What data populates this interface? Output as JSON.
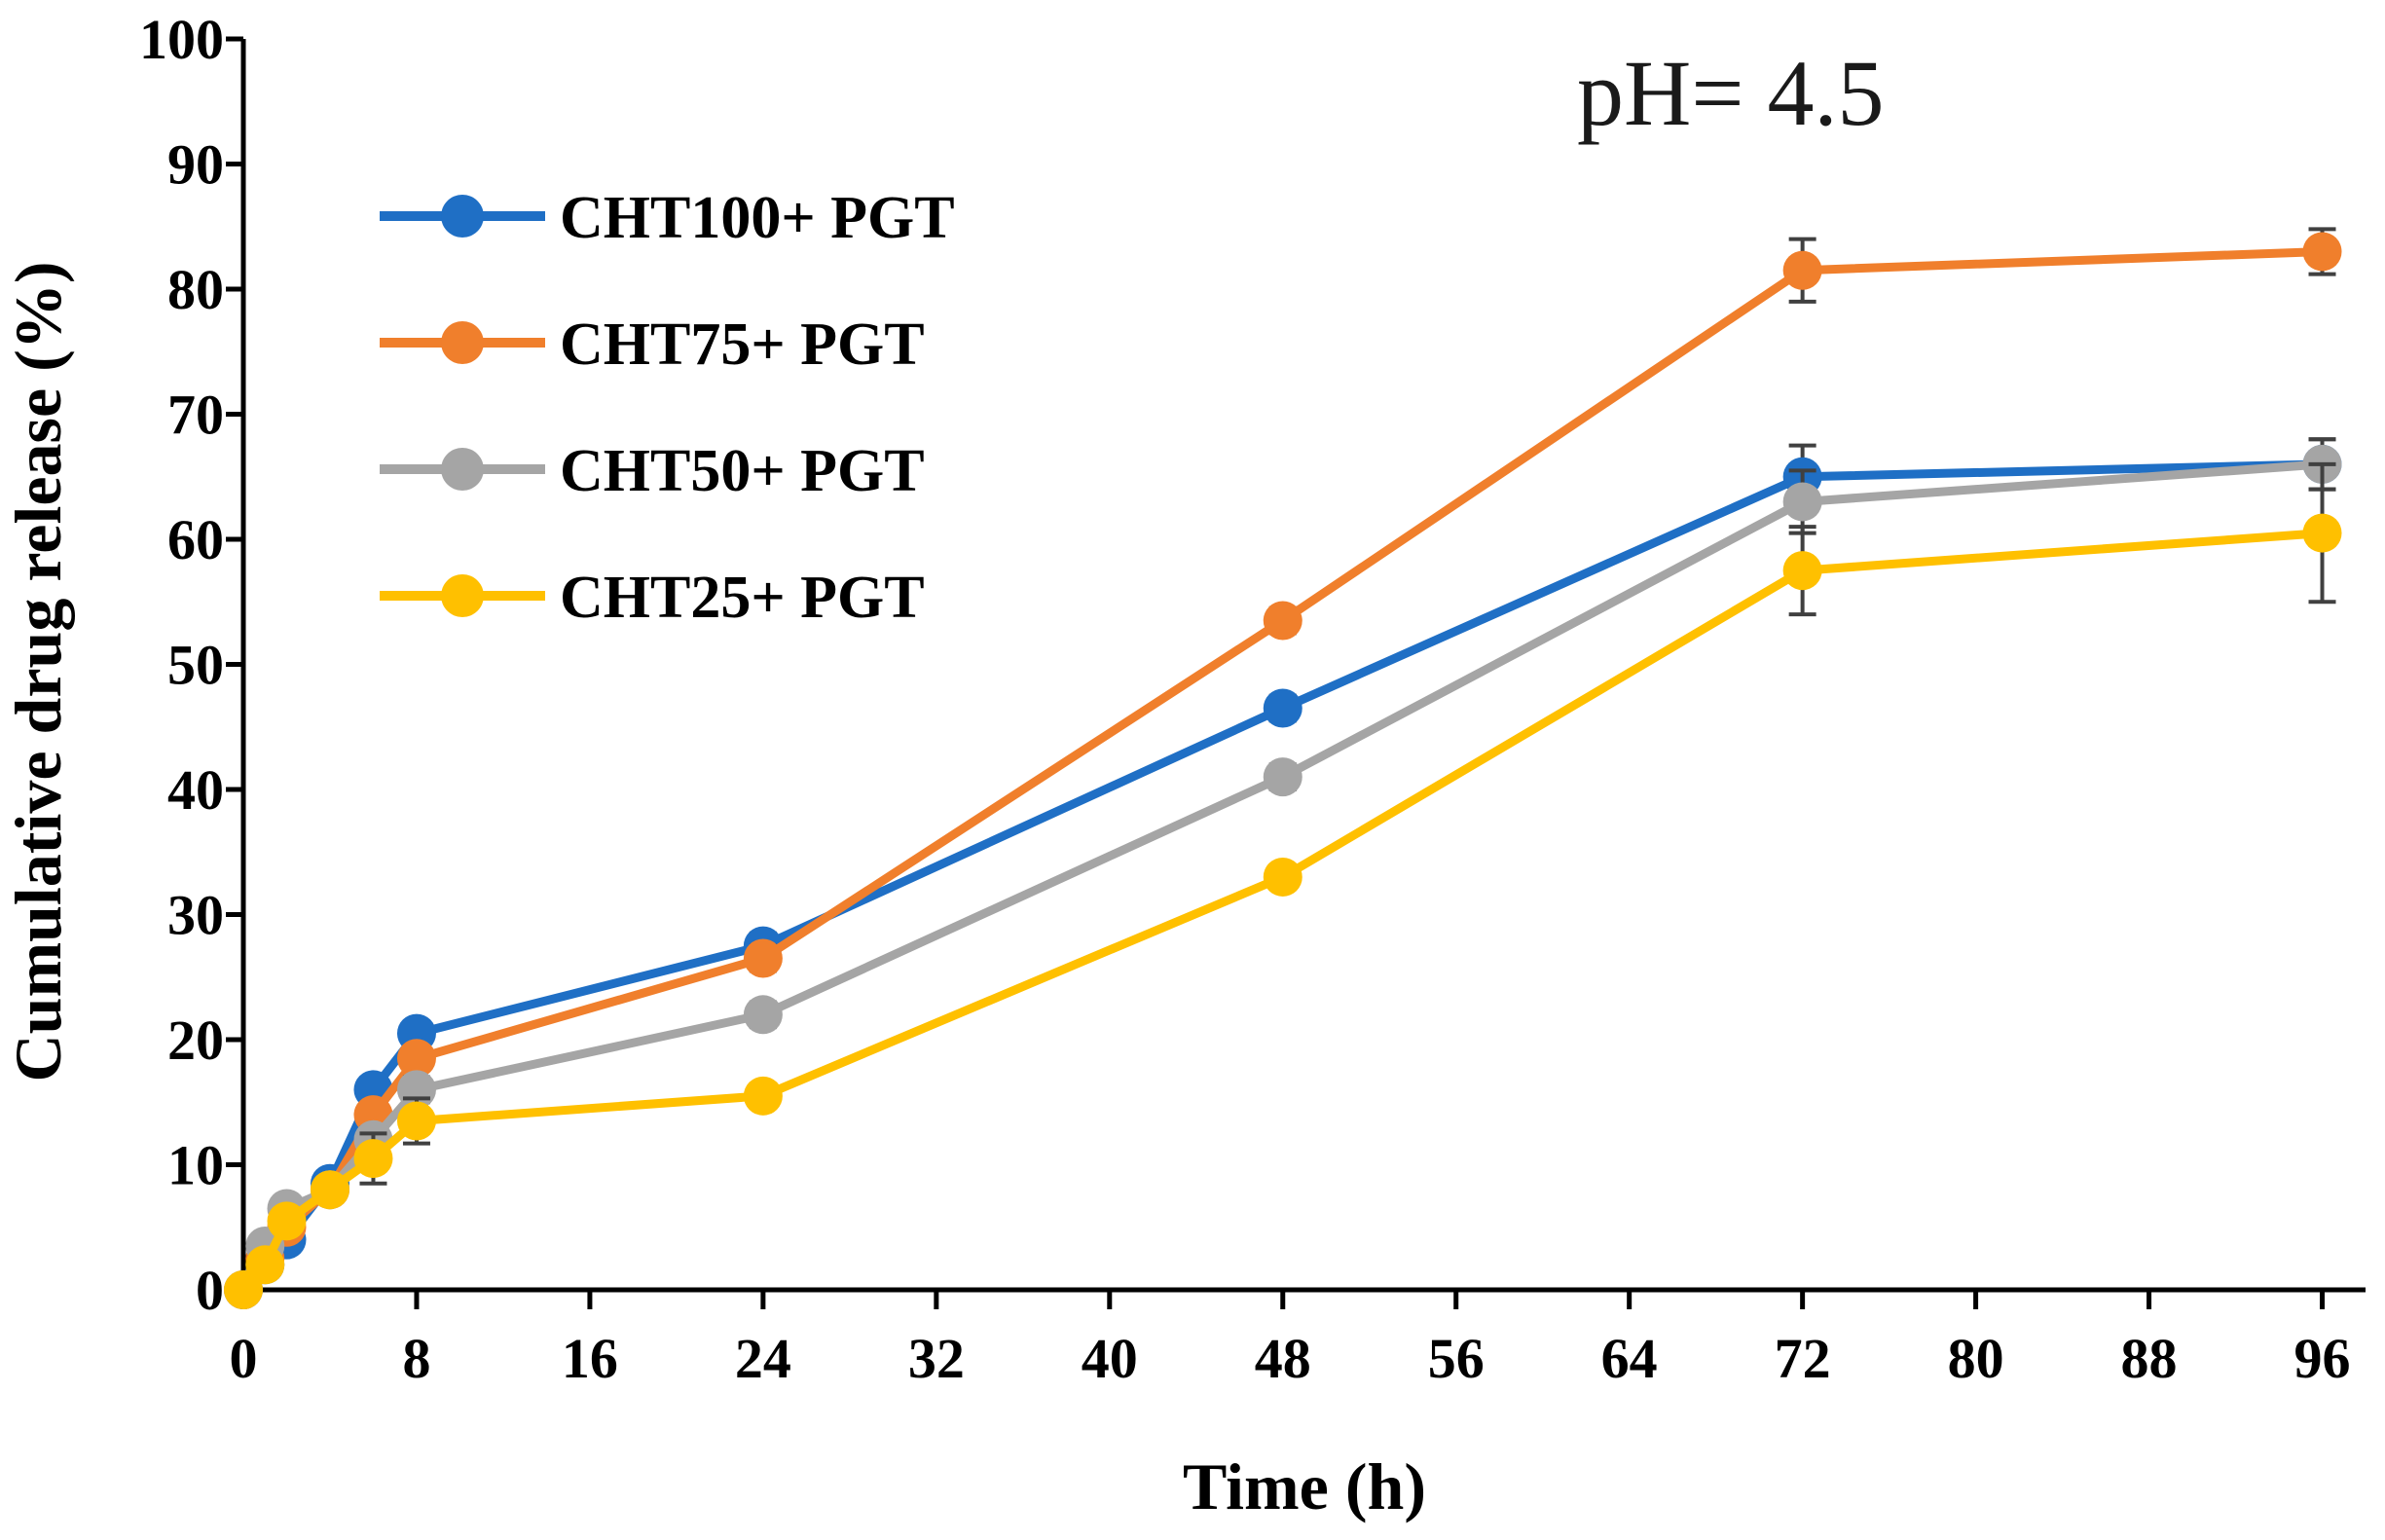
{
  "chart_data": {
    "type": "line",
    "title": "",
    "annotation": "pH= 4.5",
    "xlabel": "Time (h)",
    "ylabel": "Cumulative drug release  (%)",
    "xlim": [
      0,
      98
    ],
    "ylim": [
      0,
      100
    ],
    "xticks": [
      0,
      8,
      16,
      24,
      32,
      40,
      48,
      56,
      64,
      72,
      80,
      88,
      96
    ],
    "yticks": [
      0,
      10,
      20,
      30,
      40,
      50,
      60,
      70,
      80,
      90,
      100
    ],
    "grid": false,
    "legend_position": "top-left",
    "x": [
      0,
      1,
      2,
      4,
      6,
      8,
      24,
      48,
      72,
      96
    ],
    "series": [
      {
        "name": "CHT100+ PGT",
        "color": "#1f6fc5",
        "values": [
          0,
          2,
          4,
          8.5,
          16,
          20.5,
          27.5,
          46.5,
          65,
          66
        ],
        "errors": [
          0,
          0.5,
          0.5,
          0.5,
          0.8,
          0.8,
          1,
          1,
          2.5,
          2
        ]
      },
      {
        "name": "CHT75+ PGT",
        "color": "#f07f2c",
        "values": [
          0,
          2.5,
          5,
          8,
          14,
          18.5,
          26.5,
          53.5,
          81.5,
          83
        ],
        "errors": [
          0,
          0.5,
          0.5,
          0.5,
          0.8,
          0.8,
          1,
          1,
          2.5,
          1.8
        ]
      },
      {
        "name": "CHT50+ PGT",
        "color": "#a5a5a5",
        "values": [
          0,
          3.5,
          6.5,
          8,
          12,
          16,
          22,
          41,
          63,
          66
        ],
        "errors": [
          0,
          0.5,
          0.5,
          0.5,
          1,
          1,
          1,
          1,
          2.5,
          2
        ]
      },
      {
        "name": "CHT25+ PGT",
        "color": "#ffc000",
        "values": [
          0,
          2,
          5.5,
          8,
          10.5,
          13.5,
          15.5,
          33,
          57.5,
          60.5
        ],
        "errors": [
          0,
          0.5,
          0.5,
          0.5,
          2,
          1.8,
          0.8,
          0.8,
          3.5,
          5.5
        ]
      }
    ]
  }
}
